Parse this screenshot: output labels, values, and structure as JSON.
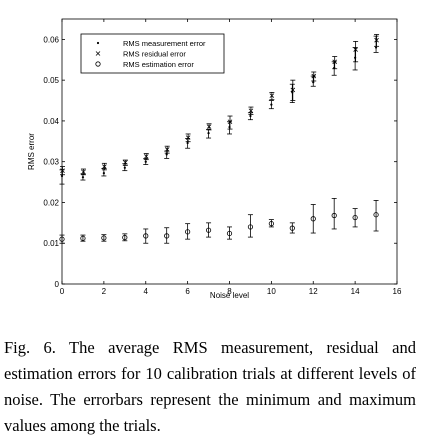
{
  "chart_data": {
    "type": "scatter",
    "title": "",
    "xlabel": "Noise level",
    "ylabel": "RMS error",
    "xlim": [
      0,
      16
    ],
    "ylim": [
      0,
      0.065
    ],
    "xticks": [
      0,
      2,
      4,
      6,
      8,
      10,
      12,
      14,
      16
    ],
    "xtick_labels": [
      "0",
      "2",
      "4",
      "6",
      "8",
      "10",
      "12",
      "14",
      "16"
    ],
    "yticks": [
      0,
      0.01,
      0.02,
      0.03,
      0.04,
      0.05,
      0.06
    ],
    "ytick_labels": [
      "0",
      "0.01",
      "0.02",
      "0.03",
      "0.04",
      "0.05",
      "0.06"
    ],
    "grid": false,
    "legend_position": "top-left",
    "x": [
      0,
      1,
      2,
      3,
      4,
      5,
      6,
      7,
      8,
      9,
      10,
      11,
      12,
      13,
      14,
      15
    ],
    "series": [
      {
        "name": "RMS measurement error",
        "marker": "dot",
        "values": [
          0.0265,
          0.0262,
          0.0272,
          0.0285,
          0.03,
          0.0318,
          0.0346,
          0.037,
          0.0385,
          0.0412,
          0.044,
          0.047,
          0.0495,
          0.053,
          0.0555,
          0.058
        ],
        "err_low": [
          0.0245,
          0.0255,
          0.0265,
          0.0278,
          0.0293,
          0.0308,
          0.0333,
          0.0358,
          0.0368,
          0.0403,
          0.043,
          0.0445,
          0.0485,
          0.0512,
          0.0525,
          0.0568
        ],
        "err_high": [
          0.028,
          0.027,
          0.0283,
          0.0295,
          0.0308,
          0.0326,
          0.0357,
          0.0379,
          0.0398,
          0.042,
          0.045,
          0.049,
          0.051,
          0.0545,
          0.058,
          0.0608
        ]
      },
      {
        "name": "RMS residual error",
        "marker": "x",
        "values": [
          0.0278,
          0.0275,
          0.0288,
          0.0298,
          0.0313,
          0.033,
          0.0359,
          0.0386,
          0.0398,
          0.0425,
          0.0462,
          0.0476,
          0.051,
          0.0545,
          0.0575,
          0.0598
        ],
        "err_low": [
          0.0268,
          0.0268,
          0.028,
          0.0291,
          0.0305,
          0.0321,
          0.0349,
          0.0378,
          0.038,
          0.0416,
          0.0452,
          0.045,
          0.0498,
          0.0528,
          0.0545,
          0.0583
        ],
        "err_high": [
          0.0288,
          0.0282,
          0.0296,
          0.0304,
          0.032,
          0.0338,
          0.0368,
          0.0393,
          0.0412,
          0.0434,
          0.047,
          0.05,
          0.052,
          0.0558,
          0.0595,
          0.0612
        ]
      },
      {
        "name": "RMS estimation error",
        "marker": "circle",
        "values": [
          0.011,
          0.0112,
          0.0113,
          0.0114,
          0.0118,
          0.0118,
          0.0128,
          0.0132,
          0.0124,
          0.014,
          0.0148,
          0.0137,
          0.016,
          0.0168,
          0.0163,
          0.017
        ],
        "err_low": [
          0.01,
          0.0105,
          0.0105,
          0.0106,
          0.01,
          0.01,
          0.011,
          0.0115,
          0.011,
          0.0115,
          0.014,
          0.0125,
          0.0125,
          0.0135,
          0.014,
          0.013
        ],
        "err_high": [
          0.012,
          0.012,
          0.0121,
          0.0123,
          0.0135,
          0.0138,
          0.0148,
          0.015,
          0.014,
          0.017,
          0.0158,
          0.015,
          0.0195,
          0.021,
          0.0185,
          0.0205
        ]
      }
    ]
  },
  "caption": "Fig. 6.   The average RMS measurement, residual and estimation errors for 10 calibration trials at different levels of noise. The errorbars represent the minimum and maximum values among the trials."
}
